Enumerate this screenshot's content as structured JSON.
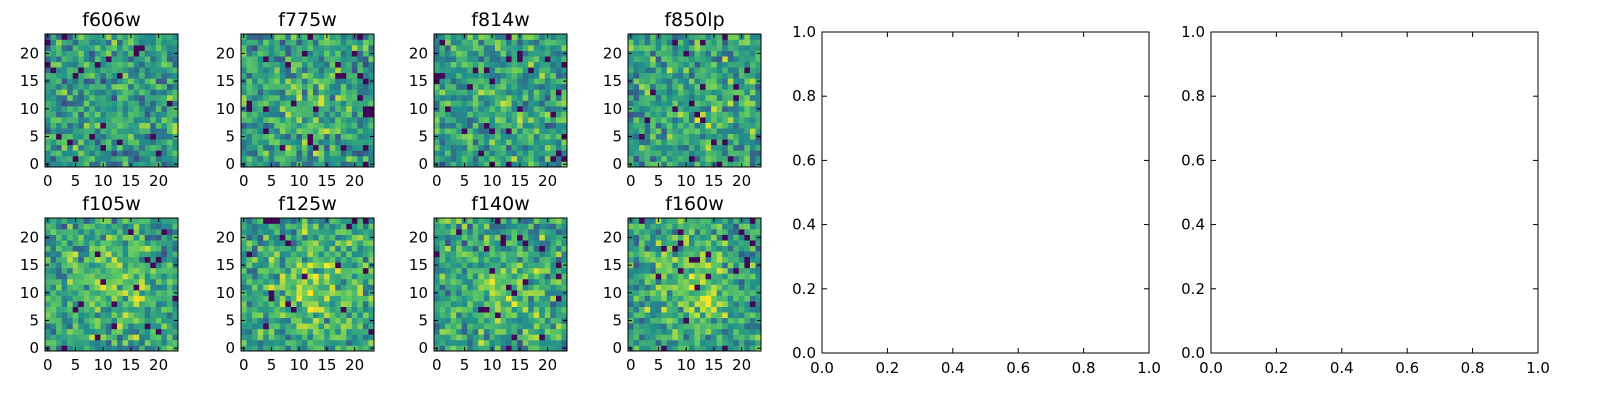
{
  "chart_data": [
    {
      "type": "heatmap",
      "title": "f606w",
      "seed": 11,
      "blob": 0.0,
      "xticks": [
        "0",
        "5",
        "10",
        "15",
        "20"
      ],
      "yticks": [
        "0",
        "5",
        "10",
        "15",
        "20"
      ],
      "xlim": [
        -0.5,
        23.5
      ],
      "ylim": [
        -0.5,
        23.5
      ]
    },
    {
      "type": "heatmap",
      "title": "f775w",
      "seed": 23,
      "blob": 0.25,
      "xticks": [
        "0",
        "5",
        "10",
        "15",
        "20"
      ],
      "yticks": [
        "0",
        "5",
        "10",
        "15",
        "20"
      ],
      "xlim": [
        -0.5,
        23.5
      ],
      "ylim": [
        -0.5,
        23.5
      ]
    },
    {
      "type": "heatmap",
      "title": "f814w",
      "seed": 37,
      "blob": 0.15,
      "xticks": [
        "0",
        "5",
        "10",
        "15",
        "20"
      ],
      "yticks": [
        "0",
        "5",
        "10",
        "15",
        "20"
      ],
      "xlim": [
        -0.5,
        23.5
      ],
      "ylim": [
        -0.5,
        23.5
      ]
    },
    {
      "type": "heatmap",
      "title": "f850lp",
      "seed": 41,
      "blob": 0.2,
      "xticks": [
        "0",
        "5",
        "10",
        "15",
        "20"
      ],
      "yticks": [
        "0",
        "5",
        "10",
        "15",
        "20"
      ],
      "xlim": [
        -0.5,
        23.5
      ],
      "ylim": [
        -0.5,
        23.5
      ]
    },
    {
      "type": "heatmap",
      "title": "f105w",
      "seed": 53,
      "blob": 0.55,
      "xticks": [
        "0",
        "5",
        "10",
        "15",
        "20"
      ],
      "yticks": [
        "0",
        "5",
        "10",
        "15",
        "20"
      ],
      "xlim": [
        -0.5,
        23.5
      ],
      "ylim": [
        -0.5,
        23.5
      ]
    },
    {
      "type": "heatmap",
      "title": "f125w",
      "seed": 61,
      "blob": 0.55,
      "xticks": [
        "0",
        "5",
        "10",
        "15",
        "20"
      ],
      "yticks": [
        "0",
        "5",
        "10",
        "15",
        "20"
      ],
      "xlim": [
        -0.5,
        23.5
      ],
      "ylim": [
        -0.5,
        23.5
      ]
    },
    {
      "type": "heatmap",
      "title": "f140w",
      "seed": 73,
      "blob": 0.45,
      "xticks": [
        "0",
        "5",
        "10",
        "15",
        "20"
      ],
      "yticks": [
        "0",
        "5",
        "10",
        "15",
        "20"
      ],
      "xlim": [
        -0.5,
        23.5
      ],
      "ylim": [
        -0.5,
        23.5
      ]
    },
    {
      "type": "heatmap",
      "title": "f160w",
      "seed": 89,
      "blob": 0.5,
      "xticks": [
        "0",
        "5",
        "10",
        "15",
        "20"
      ],
      "yticks": [
        "0",
        "5",
        "10",
        "15",
        "20"
      ],
      "xlim": [
        -0.5,
        23.5
      ],
      "ylim": [
        -0.5,
        23.5
      ]
    },
    {
      "type": "line",
      "title": "",
      "series": [],
      "xticks": [
        "0.0",
        "0.2",
        "0.4",
        "0.6",
        "0.8",
        "1.0"
      ],
      "yticks": [
        "0.0",
        "0.2",
        "0.4",
        "0.6",
        "0.8",
        "1.0"
      ],
      "xlim": [
        0,
        1
      ],
      "ylim": [
        0,
        1
      ]
    },
    {
      "type": "line",
      "title": "",
      "series": [],
      "xticks": [
        "0.0",
        "0.2",
        "0.4",
        "0.6",
        "0.8",
        "1.0"
      ],
      "yticks": [
        "0.0",
        "0.2",
        "0.4",
        "0.6",
        "0.8",
        "1.0"
      ],
      "xlim": [
        0,
        1
      ],
      "ylim": [
        0,
        1
      ]
    }
  ],
  "colormap": [
    "#440154",
    "#3b528b",
    "#21918c",
    "#5ec962",
    "#fde725"
  ]
}
